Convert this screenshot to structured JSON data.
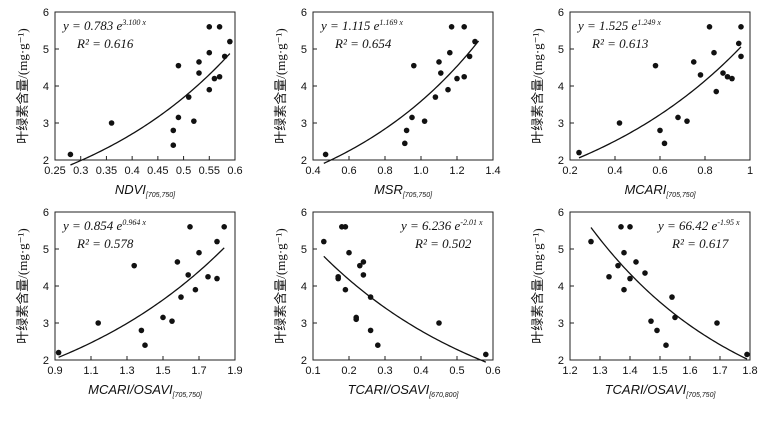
{
  "chart_data": [
    {
      "type": "scatter",
      "xlabel": "NDVI",
      "xlabel_sub": "[705,750]",
      "ylabel": "叶绿素含量/(mg·g⁻¹)",
      "xlim": [
        0.25,
        0.6
      ],
      "xticks": [
        0.25,
        0.3,
        0.35,
        0.4,
        0.45,
        0.5,
        0.55,
        0.6
      ],
      "xtick_labels": [
        "0.25",
        "0.3",
        "0.35",
        "0.4",
        "0.45",
        "0.5",
        "0.55",
        "0.6"
      ],
      "ylim": [
        2,
        6
      ],
      "yticks": [
        2,
        3,
        4,
        5,
        6
      ],
      "eq_text": "y = 0.783 e",
      "eq_exp": "3.100 x",
      "r2_text": "R² = 0.616",
      "fit": {
        "a": 0.783,
        "b": 3.1,
        "x_range": [
          0.28,
          0.59
        ]
      },
      "points": [
        [
          0.28,
          2.15
        ],
        [
          0.36,
          3.0
        ],
        [
          0.48,
          2.4
        ],
        [
          0.48,
          2.8
        ],
        [
          0.49,
          4.55
        ],
        [
          0.49,
          3.15
        ],
        [
          0.51,
          3.7
        ],
        [
          0.52,
          3.05
        ],
        [
          0.53,
          4.35
        ],
        [
          0.53,
          4.65
        ],
        [
          0.55,
          3.9
        ],
        [
          0.55,
          4.9
        ],
        [
          0.55,
          5.6
        ],
        [
          0.56,
          4.2
        ],
        [
          0.57,
          4.25
        ],
        [
          0.57,
          5.6
        ],
        [
          0.58,
          4.8
        ],
        [
          0.59,
          5.2
        ]
      ]
    },
    {
      "type": "scatter",
      "xlabel": "MSR",
      "xlabel_sub": "[705,750]",
      "ylabel": "叶绿素含量/(mg·g⁻¹)",
      "xlim": [
        0.4,
        1.4
      ],
      "xticks": [
        0.4,
        0.6,
        0.8,
        1.0,
        1.2,
        1.4
      ],
      "xtick_labels": [
        "0.4",
        "0.6",
        "0.8",
        "1.0",
        "1.2",
        "1.4"
      ],
      "ylim": [
        2,
        6
      ],
      "yticks": [
        2,
        3,
        4,
        5,
        6
      ],
      "eq_text": "y = 1.115 e",
      "eq_exp": "1.169 x",
      "r2_text": "R² = 0.654",
      "fit": {
        "a": 1.115,
        "b": 1.169,
        "x_range": [
          0.46,
          1.32
        ]
      },
      "points": [
        [
          0.47,
          2.15
        ],
        [
          0.91,
          2.45
        ],
        [
          0.92,
          2.8
        ],
        [
          0.95,
          3.15
        ],
        [
          0.96,
          4.55
        ],
        [
          1.02,
          3.05
        ],
        [
          1.08,
          3.7
        ],
        [
          1.1,
          4.65
        ],
        [
          1.11,
          4.35
        ],
        [
          1.15,
          3.9
        ],
        [
          1.16,
          4.9
        ],
        [
          1.17,
          5.6
        ],
        [
          1.2,
          4.2
        ],
        [
          1.24,
          4.25
        ],
        [
          1.24,
          5.6
        ],
        [
          1.27,
          4.8
        ],
        [
          1.3,
          5.2
        ]
      ]
    },
    {
      "type": "scatter",
      "xlabel": "MCARI",
      "xlabel_sub": "[705,750]",
      "ylabel": "叶绿素含量/(mg·g⁻¹)",
      "xlim": [
        0.2,
        1.0
      ],
      "xticks": [
        0.2,
        0.4,
        0.6,
        0.8,
        1.0
      ],
      "xtick_labels": [
        "0.2",
        "0.4",
        "0.6",
        "0.8",
        "1"
      ],
      "ylim": [
        2,
        6
      ],
      "yticks": [
        2,
        3,
        4,
        5,
        6
      ],
      "eq_text": "y = 1.525 e",
      "eq_exp": "1.249 x",
      "r2_text": "R² = 0.613",
      "fit": {
        "a": 1.525,
        "b": 1.249,
        "x_range": [
          0.24,
          0.96
        ]
      },
      "points": [
        [
          0.24,
          2.2
        ],
        [
          0.42,
          3.0
        ],
        [
          0.58,
          4.55
        ],
        [
          0.6,
          2.8
        ],
        [
          0.62,
          2.45
        ],
        [
          0.68,
          3.15
        ],
        [
          0.72,
          3.05
        ],
        [
          0.75,
          4.65
        ],
        [
          0.78,
          4.3
        ],
        [
          0.82,
          5.6
        ],
        [
          0.84,
          4.9
        ],
        [
          0.85,
          3.85
        ],
        [
          0.88,
          4.35
        ],
        [
          0.9,
          4.25
        ],
        [
          0.92,
          4.2
        ],
        [
          0.95,
          5.15
        ],
        [
          0.96,
          5.6
        ],
        [
          0.96,
          4.8
        ]
      ]
    },
    {
      "type": "scatter",
      "xlabel": "MCARI/OSAVI",
      "xlabel_sub": "[705,750]",
      "ylabel": "叶绿素含量/(mg·g⁻¹)",
      "xlim": [
        0.9,
        1.9
      ],
      "xticks": [
        0.9,
        1.1,
        1.3,
        1.5,
        1.7,
        1.9
      ],
      "xtick_labels": [
        "0.9",
        "1.1",
        "1.3",
        "1.5",
        "1.7",
        "1.9"
      ],
      "ylim": [
        2,
        6
      ],
      "yticks": [
        2,
        3,
        4,
        5,
        6
      ],
      "eq_text": "y = 0.854 e",
      "eq_exp": "0.964 x",
      "r2_text": "R² = 0.578",
      "fit": {
        "a": 0.854,
        "b": 0.964,
        "x_range": [
          0.92,
          1.84
        ]
      },
      "points": [
        [
          0.92,
          2.2
        ],
        [
          1.14,
          3.0
        ],
        [
          1.34,
          4.55
        ],
        [
          1.38,
          2.8
        ],
        [
          1.4,
          2.4
        ],
        [
          1.5,
          3.15
        ],
        [
          1.55,
          3.05
        ],
        [
          1.58,
          4.65
        ],
        [
          1.6,
          3.7
        ],
        [
          1.64,
          4.3
        ],
        [
          1.65,
          5.6
        ],
        [
          1.68,
          3.9
        ],
        [
          1.7,
          4.9
        ],
        [
          1.75,
          4.25
        ],
        [
          1.8,
          4.2
        ],
        [
          1.8,
          5.2
        ],
        [
          1.84,
          5.6
        ]
      ]
    },
    {
      "type": "scatter",
      "xlabel": "TCARI/OSAVI",
      "xlabel_sub": "[670,800]",
      "ylabel": "叶绿素含量/(mg·g⁻¹)",
      "xlim": [
        0.1,
        0.6
      ],
      "xticks": [
        0.1,
        0.2,
        0.3,
        0.4,
        0.5,
        0.6
      ],
      "xtick_labels": [
        "0.1",
        "0.2",
        "0.3",
        "0.4",
        "0.5",
        "0.6"
      ],
      "ylim": [
        2,
        6
      ],
      "yticks": [
        2,
        3,
        4,
        5,
        6
      ],
      "eq_text": "y = 6.236 e",
      "eq_exp": "-2.01 x",
      "r2_text": "R² = 0.502",
      "fit": {
        "a": 6.236,
        "b": -2.01,
        "x_range": [
          0.13,
          0.58
        ]
      },
      "points": [
        [
          0.13,
          5.2
        ],
        [
          0.17,
          4.25
        ],
        [
          0.17,
          4.2
        ],
        [
          0.18,
          5.6
        ],
        [
          0.19,
          5.6
        ],
        [
          0.19,
          3.9
        ],
        [
          0.2,
          4.9
        ],
        [
          0.22,
          3.1
        ],
        [
          0.22,
          3.15
        ],
        [
          0.23,
          4.55
        ],
        [
          0.24,
          4.65
        ],
        [
          0.24,
          4.3
        ],
        [
          0.26,
          3.7
        ],
        [
          0.26,
          2.8
        ],
        [
          0.28,
          2.4
        ],
        [
          0.45,
          3.0
        ],
        [
          0.58,
          2.15
        ]
      ]
    },
    {
      "type": "scatter",
      "xlabel": "TCARI/OSAVI",
      "xlabel_sub": "[705,750]",
      "ylabel": "叶绿素含量/(mg·g⁻¹)",
      "xlim": [
        1.2,
        1.8
      ],
      "xticks": [
        1.2,
        1.3,
        1.4,
        1.5,
        1.6,
        1.7,
        1.8
      ],
      "xtick_labels": [
        "1.2",
        "1.3",
        "1.4",
        "1.5",
        "1.6",
        "1.7",
        "1.8"
      ],
      "ylim": [
        2,
        6
      ],
      "yticks": [
        2,
        3,
        4,
        5,
        6
      ],
      "eq_text": "y = 66.42 e",
      "eq_exp": "-1.95 x",
      "r2_text": "R² = 0.617",
      "fit": {
        "a": 66.42,
        "b": -1.95,
        "x_range": [
          1.27,
          1.79
        ]
      },
      "points": [
        [
          1.27,
          5.2
        ],
        [
          1.33,
          4.25
        ],
        [
          1.36,
          4.55
        ],
        [
          1.37,
          5.6
        ],
        [
          1.38,
          3.9
        ],
        [
          1.38,
          4.9
        ],
        [
          1.4,
          5.6
        ],
        [
          1.4,
          4.2
        ],
        [
          1.42,
          4.65
        ],
        [
          1.45,
          4.35
        ],
        [
          1.47,
          3.05
        ],
        [
          1.49,
          2.8
        ],
        [
          1.52,
          2.4
        ],
        [
          1.54,
          3.7
        ],
        [
          1.55,
          3.15
        ],
        [
          1.69,
          3.0
        ],
        [
          1.79,
          2.15
        ]
      ]
    }
  ]
}
